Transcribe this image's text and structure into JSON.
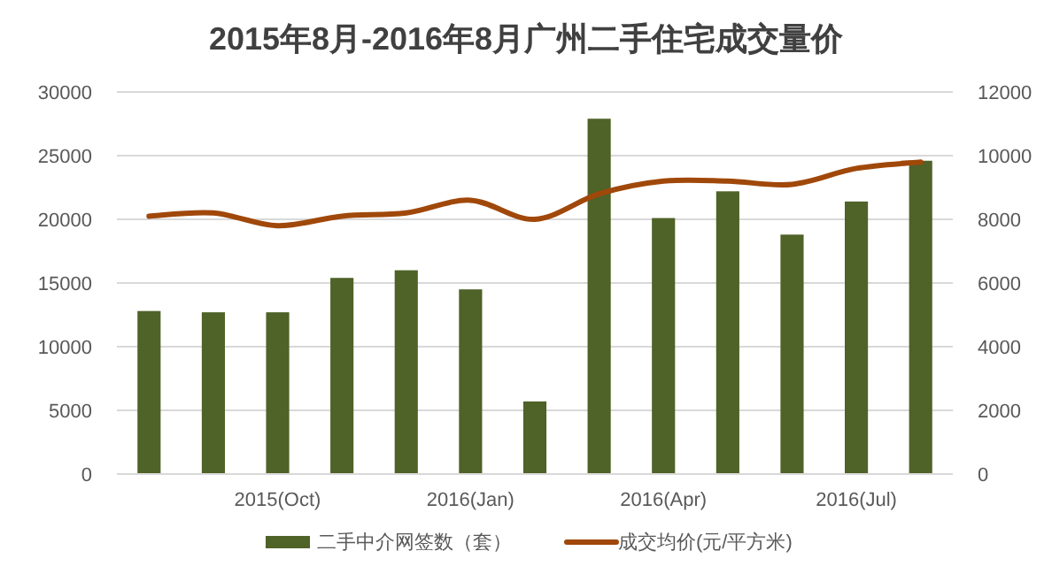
{
  "chart_data": {
    "type": "bar",
    "title": "2015年8月-2016年8月广州二手住宅成交量价",
    "categories": [
      null,
      null,
      "2015(Oct)",
      null,
      null,
      "2016(Jan)",
      null,
      null,
      "2016(Apr)",
      null,
      null,
      "2016(Jul)",
      null
    ],
    "series": [
      {
        "name": "二手中介网签数（套）",
        "color": "#4f6228",
        "values": [
          12800,
          12700,
          12700,
          15400,
          16000,
          14500,
          5700,
          27900,
          20100,
          22200,
          18800,
          21400,
          24600
        ]
      },
      {
        "name": "成交均价(元/平方米)",
        "type": "line",
        "axis": "y2",
        "color": "#a0480a",
        "values": [
          8100,
          8200,
          7800,
          8100,
          8200,
          8600,
          8000,
          8800,
          9200,
          9200,
          9100,
          9600,
          9800
        ]
      }
    ],
    "ylim": [
      0,
      30000
    ],
    "yticks": [
      0,
      5000,
      10000,
      15000,
      20000,
      25000,
      30000
    ],
    "y2lim": [
      0,
      12000
    ],
    "y2ticks": [
      0,
      2000,
      4000,
      6000,
      8000,
      10000,
      12000
    ],
    "grid": "y",
    "legend": "bottom"
  }
}
